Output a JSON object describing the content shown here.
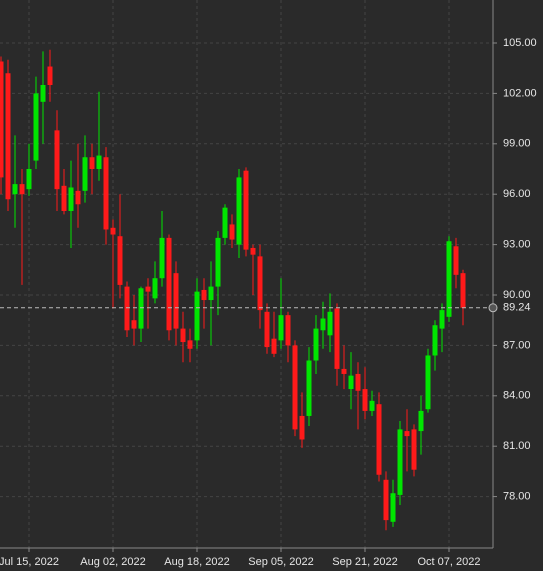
{
  "chart_data": {
    "type": "candlestick",
    "categories": [
      null,
      null,
      null,
      null,
      "Jul 15, 2022",
      null,
      null,
      null,
      null,
      null,
      null,
      null,
      null,
      null,
      null,
      null,
      "Aug 02, 2022",
      null,
      null,
      null,
      null,
      null,
      null,
      null,
      null,
      null,
      null,
      null,
      "Aug 18, 2022",
      null,
      null,
      null,
      null,
      null,
      null,
      null,
      null,
      null,
      null,
      null,
      "Sep 05, 2022",
      null,
      null,
      null,
      null,
      null,
      null,
      null,
      null,
      null,
      null,
      null,
      "Sep 21, 2022",
      null,
      null,
      null,
      null,
      null,
      null,
      null,
      null,
      null,
      null,
      null,
      "Oct 07, 2022",
      null,
      null
    ],
    "open": [
      103.9,
      103.2,
      96.0,
      96.6,
      96.3,
      98.0,
      101.5,
      103.6,
      99.8,
      96.5,
      95.0,
      96.2,
      96.2,
      98.2,
      97.5,
      98.2,
      94.0,
      93.5,
      90.5,
      88.5,
      88.0,
      90.5,
      89.8,
      91.0,
      93.4,
      91.3,
      88.0,
      87.3,
      87.3,
      90.3,
      89.7,
      90.5,
      93.4,
      94.2,
      93.0,
      97.4,
      92.8,
      92.3,
      89.0,
      87.4,
      87.3,
      88.8,
      87.0,
      82.8,
      82.8,
      86.1,
      87.9,
      87.6,
      89.2,
      85.6,
      84.4,
      85.3,
      84.4,
      83.1,
      83.5,
      79.0,
      76.5,
      78.1,
      81.9,
      82.0,
      81.9,
      83.2,
      86.4,
      88.0,
      88.7,
      92.9,
      91.3
    ],
    "high": [
      104.2,
      104.0,
      99.5,
      97.5,
      99.0,
      103.0,
      104.5,
      104.6,
      101.0,
      97.5,
      98.0,
      99.0,
      99.5,
      99.0,
      102.1,
      98.8,
      94.5,
      96.0,
      90.8,
      90.0,
      90.5,
      91.0,
      92.0,
      95.0,
      93.6,
      92.0,
      89.0,
      88.0,
      91.0,
      91.0,
      92.0,
      93.8,
      95.4,
      94.8,
      97.5,
      97.6,
      93.0,
      93.0,
      89.5,
      89.0,
      91.0,
      89.0,
      87.3,
      84.2,
      86.9,
      88.8,
      89.6,
      90.1,
      89.5,
      87.0,
      86.6,
      86.0,
      85.7,
      84.3,
      84.2,
      79.5,
      79.0,
      82.5,
      83.2,
      82.3,
      84.0,
      86.8,
      88.5,
      89.5,
      93.5,
      93.4,
      91.5
    ],
    "low": [
      96.0,
      95.0,
      94.0,
      90.6,
      95.9,
      97.5,
      99.0,
      101.5,
      95.0,
      94.8,
      92.8,
      94.0,
      95.5,
      96.0,
      96.8,
      93.0,
      89.2,
      89.8,
      87.5,
      87.0,
      87.2,
      88.0,
      89.5,
      90.5,
      87.3,
      87.0,
      86.0,
      86.0,
      86.8,
      88.0,
      87.0,
      88.8,
      93.0,
      92.8,
      92.2,
      92.3,
      90.0,
      88.0,
      86.5,
      86.3,
      86.8,
      86.0,
      81.6,
      80.9,
      82.2,
      85.3,
      86.8,
      86.6,
      84.6,
      84.4,
      83.2,
      82.0,
      82.6,
      82.8,
      78.9,
      76.0,
      76.2,
      77.5,
      79.5,
      79.2,
      80.5,
      83.0,
      85.5,
      86.6,
      88.4,
      90.4,
      88.2
    ],
    "close": [
      97.0,
      95.7,
      96.6,
      96.0,
      97.5,
      102.0,
      102.5,
      102.5,
      96.3,
      95.0,
      96.4,
      95.4,
      98.2,
      97.5,
      98.3,
      93.9,
      93.6,
      90.6,
      87.9,
      88.0,
      90.4,
      90.2,
      91.0,
      93.4,
      87.9,
      88.0,
      87.2,
      86.8,
      90.2,
      89.7,
      90.5,
      93.4,
      95.2,
      93.3,
      97.0,
      92.7,
      92.4,
      89.1,
      86.9,
      86.5,
      88.8,
      87.0,
      82.0,
      81.4,
      86.1,
      88.0,
      88.6,
      89.0,
      85.6,
      85.3,
      85.2,
      84.3,
      83.1,
      83.7,
      79.3,
      76.6,
      78.2,
      82.0,
      81.6,
      79.6,
      83.1,
      86.4,
      88.2,
      89.1,
      93.2,
      91.2,
      89.24
    ],
    "up_color": "#00e600",
    "down_color": "#ff1a1a",
    "ylim": [
      74.94,
      107.56
    ],
    "yticks": [
      {
        "value": 78,
        "label": "78.00"
      },
      {
        "value": 81,
        "label": "81.00"
      },
      {
        "value": 84,
        "label": "84.00"
      },
      {
        "value": 87,
        "label": "87.00"
      },
      {
        "value": 90,
        "label": "90.00"
      },
      {
        "value": 93,
        "label": "93.00"
      },
      {
        "value": 96,
        "label": "96.00"
      },
      {
        "value": 99,
        "label": "99.00"
      },
      {
        "value": 102,
        "label": "102.00"
      },
      {
        "value": 105,
        "label": "105.00"
      }
    ],
    "last_price": 89.24,
    "grid": true
  }
}
